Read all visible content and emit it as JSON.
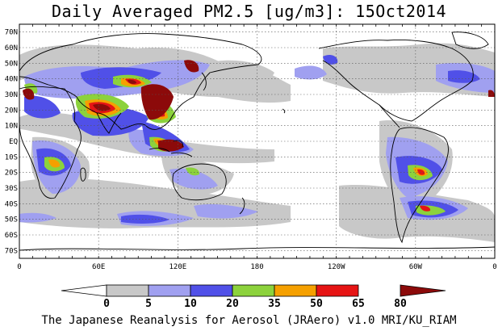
{
  "title": "Daily Averaged PM2.5 [ug/m3]: 15Oct2014",
  "footer": "The Japanese Reanalysis for Aerosol (JRAero) v1.0 MRI/KU_RIAM",
  "lat_labels": [
    "70N",
    "60N",
    "50N",
    "40N",
    "30N",
    "20N",
    "10N",
    "EQ",
    "10S",
    "20S",
    "30S",
    "40S",
    "50S",
    "60S",
    "70S"
  ],
  "lon_labels": [
    "0",
    "60E",
    "120E",
    "180",
    "120W",
    "60W",
    "0"
  ],
  "colorbar": {
    "ticks": [
      "0",
      "5",
      "10",
      "20",
      "35",
      "50",
      "65",
      "80"
    ],
    "colors": [
      "#ffffff",
      "#c8c8c8",
      "#a0a0f0",
      "#5050e8",
      "#8cd23c",
      "#f5a000",
      "#e61414",
      "#8c0a0a"
    ]
  },
  "legend_colors": {
    "gray": "#c8c8c8",
    "light_blue": "#a0a0f0",
    "blue": "#5050e8",
    "green": "#8cd23c",
    "orange": "#f5a000",
    "red": "#e61414",
    "dark_red": "#8c0a0a"
  }
}
